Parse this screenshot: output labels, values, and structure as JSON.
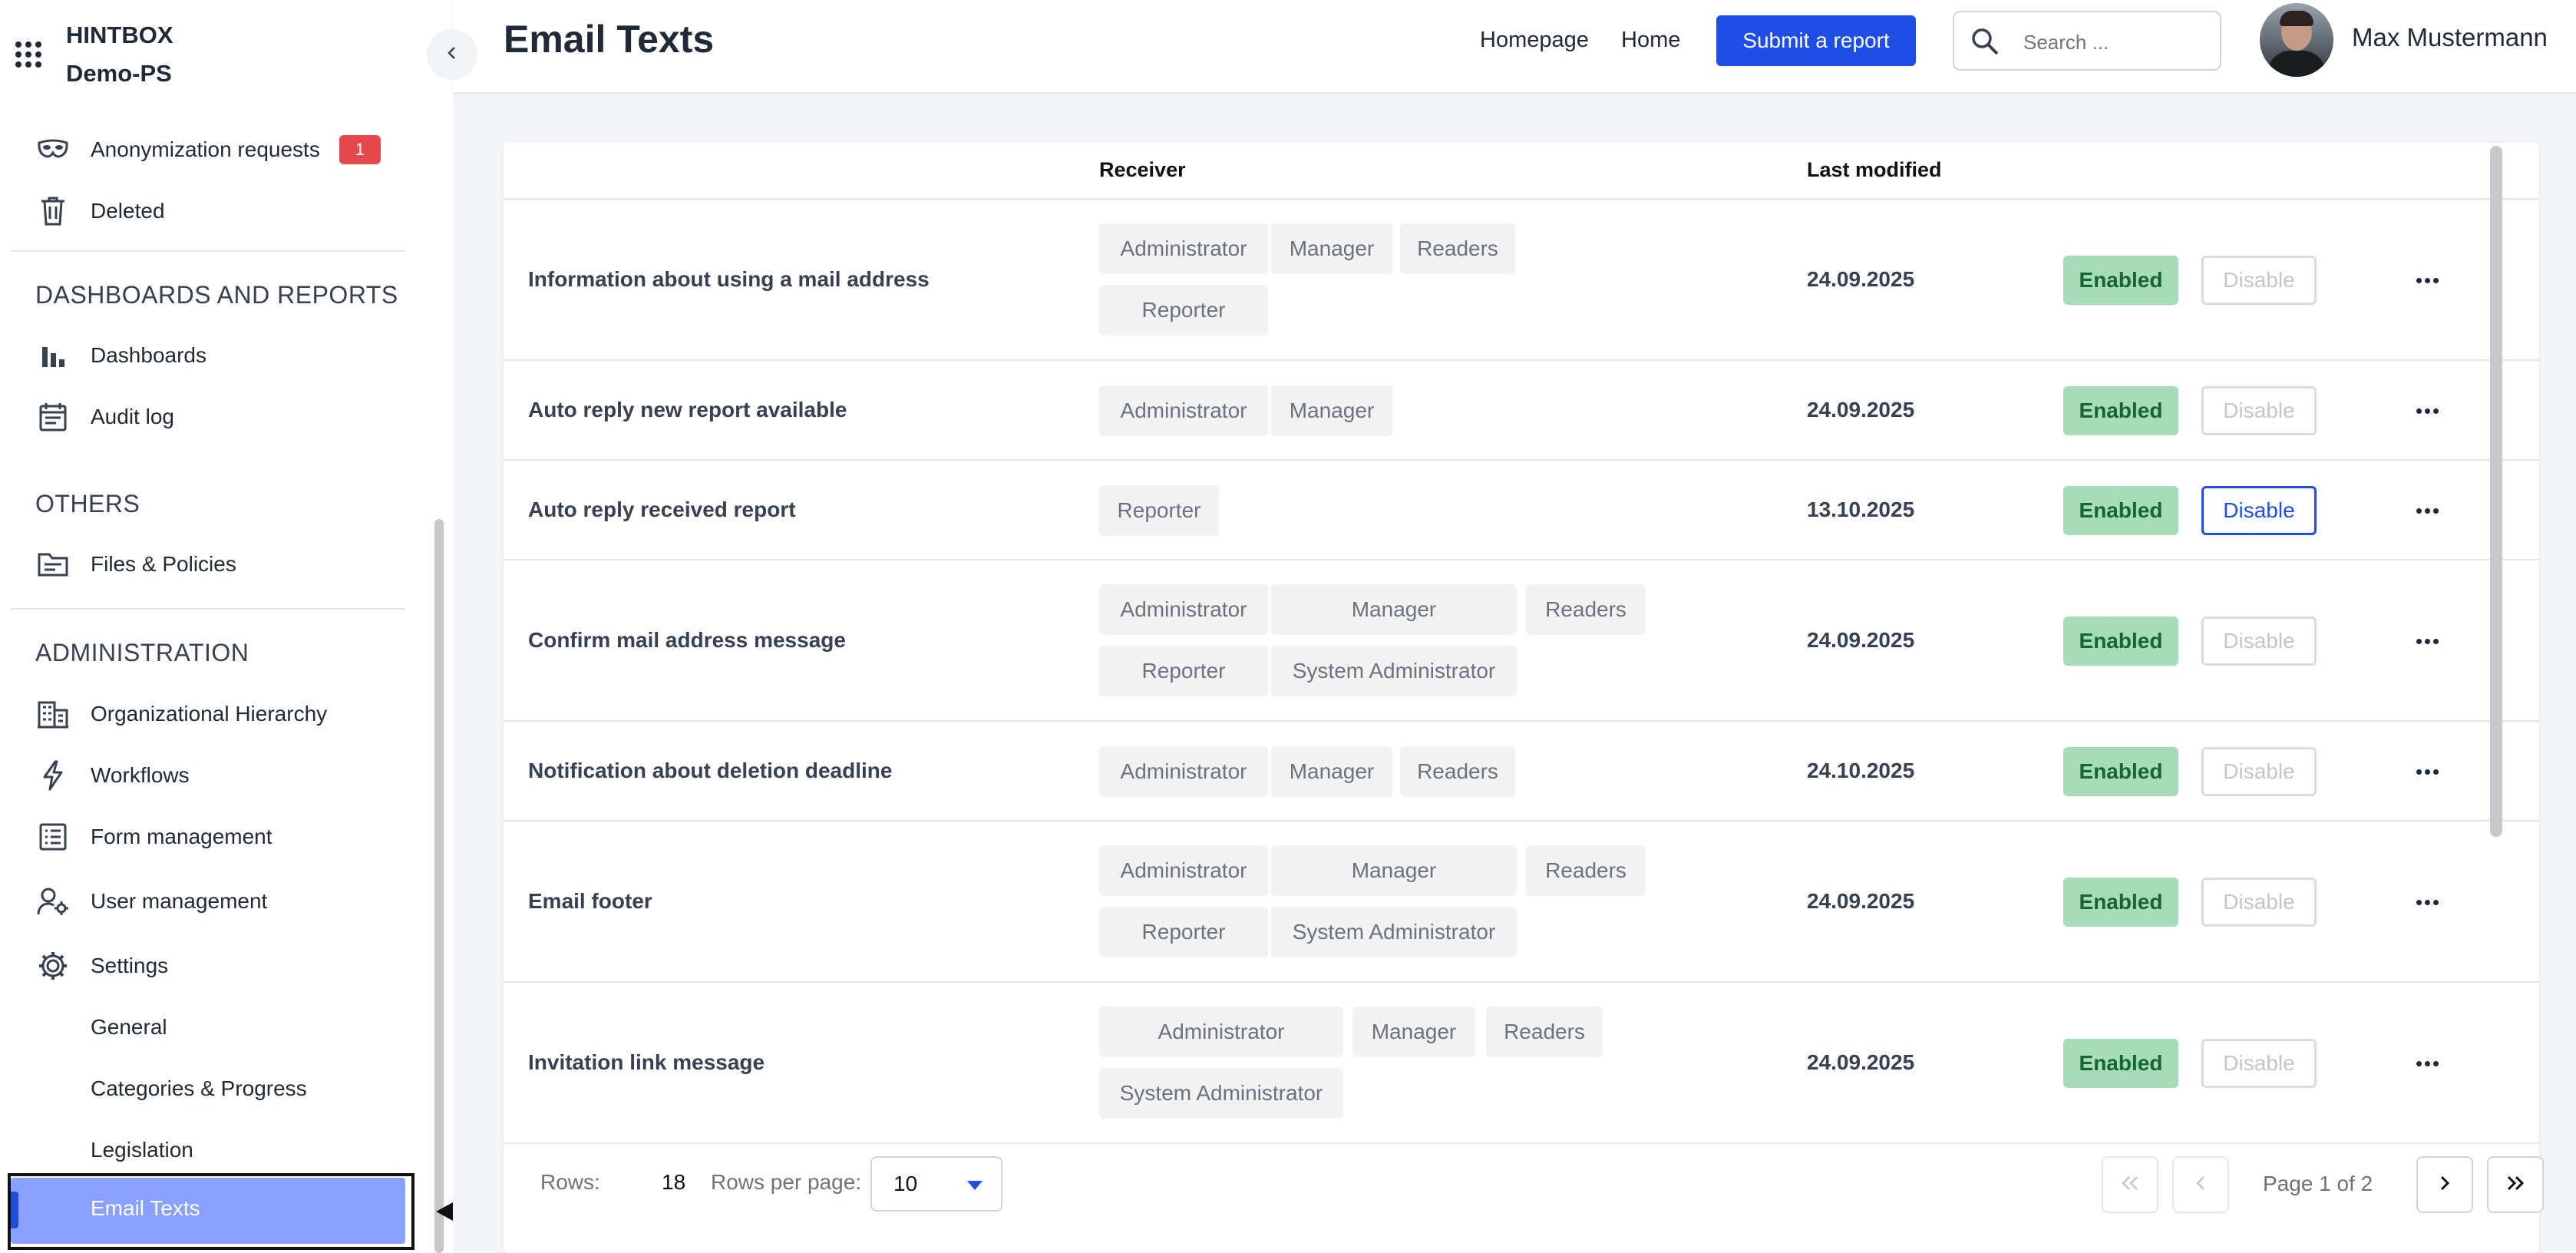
{
  "brand": {
    "name": "HINTBOX",
    "sub": "Demo-PS"
  },
  "sidebar": {
    "top_items": [
      {
        "label": "Anonymization requests",
        "icon": "mask-icon",
        "badge": "1"
      },
      {
        "label": "Deleted",
        "icon": "trash-icon"
      }
    ],
    "sections": [
      {
        "title": "DASHBOARDS AND REPORTS",
        "items": [
          {
            "label": "Dashboards",
            "icon": "bar-chart-icon"
          },
          {
            "label": "Audit log",
            "icon": "calendar-log-icon"
          }
        ]
      },
      {
        "title": "OTHERS",
        "items": [
          {
            "label": "Files & Policies",
            "icon": "folder-icon"
          }
        ]
      },
      {
        "title": "ADMINISTRATION",
        "items": [
          {
            "label": "Organizational Hierarchy",
            "icon": "building-icon"
          },
          {
            "label": "Workflows",
            "icon": "lightning-icon"
          },
          {
            "label": "Form management",
            "icon": "list-form-icon"
          },
          {
            "label": "User management",
            "icon": "user-gear-icon"
          },
          {
            "label": "Settings",
            "icon": "gear-icon"
          }
        ]
      }
    ],
    "settings_sub": [
      "General",
      "Categories & Progress",
      "Legislation",
      "Email Texts"
    ],
    "active_item": "Email Texts"
  },
  "header": {
    "title": "Email Texts",
    "links": [
      "Homepage",
      "Home"
    ],
    "submit_label": "Submit a report",
    "search_placeholder": "Search ...",
    "user_name": "Max Mustermann"
  },
  "table": {
    "columns": [
      "",
      "Receiver",
      "Last modified"
    ],
    "rows": [
      {
        "name": "Information about using a mail address",
        "receivers": [
          "Administrator",
          "Manager",
          "Readers",
          "Reporter"
        ],
        "date": "24.09.2025",
        "status": "Enabled",
        "action": "Disable",
        "action_active": false
      },
      {
        "name": "Auto reply new report available",
        "receivers": [
          "Administrator",
          "Manager"
        ],
        "date": "24.09.2025",
        "status": "Enabled",
        "action": "Disable",
        "action_active": false
      },
      {
        "name": "Auto reply received report",
        "receivers": [
          "Reporter"
        ],
        "date": "13.10.2025",
        "status": "Enabled",
        "action": "Disable",
        "action_active": true
      },
      {
        "name": "Confirm mail address message",
        "receivers": [
          "Administrator",
          "Manager",
          "Readers",
          "Reporter",
          "System Administrator"
        ],
        "date": "24.09.2025",
        "status": "Enabled",
        "action": "Disable",
        "action_active": false
      },
      {
        "name": "Notification about deletion deadline",
        "receivers": [
          "Administrator",
          "Manager",
          "Readers"
        ],
        "date": "24.10.2025",
        "status": "Enabled",
        "action": "Disable",
        "action_active": false
      },
      {
        "name": "Email footer",
        "receivers": [
          "Administrator",
          "Manager",
          "Readers",
          "Reporter",
          "System Administrator"
        ],
        "date": "24.09.2025",
        "status": "Enabled",
        "action": "Disable",
        "action_active": false
      },
      {
        "name": "Invitation link message",
        "receivers": [
          "Administrator",
          "Manager",
          "Readers",
          "System Administrator"
        ],
        "date": "24.09.2025",
        "status": "Enabled",
        "action": "Disable",
        "action_active": false
      }
    ]
  },
  "footer": {
    "rows_label": "Rows:",
    "rows_count": "18",
    "rows_per_page_label": "Rows per page:",
    "rows_per_page": "10",
    "page_info": "Page 1 of 2"
  },
  "colors": {
    "accent": "#1e4ee6",
    "enabled_bg": "#a7dcb9",
    "badge": "#e5484d",
    "active_nav": "#8aa0ff"
  }
}
